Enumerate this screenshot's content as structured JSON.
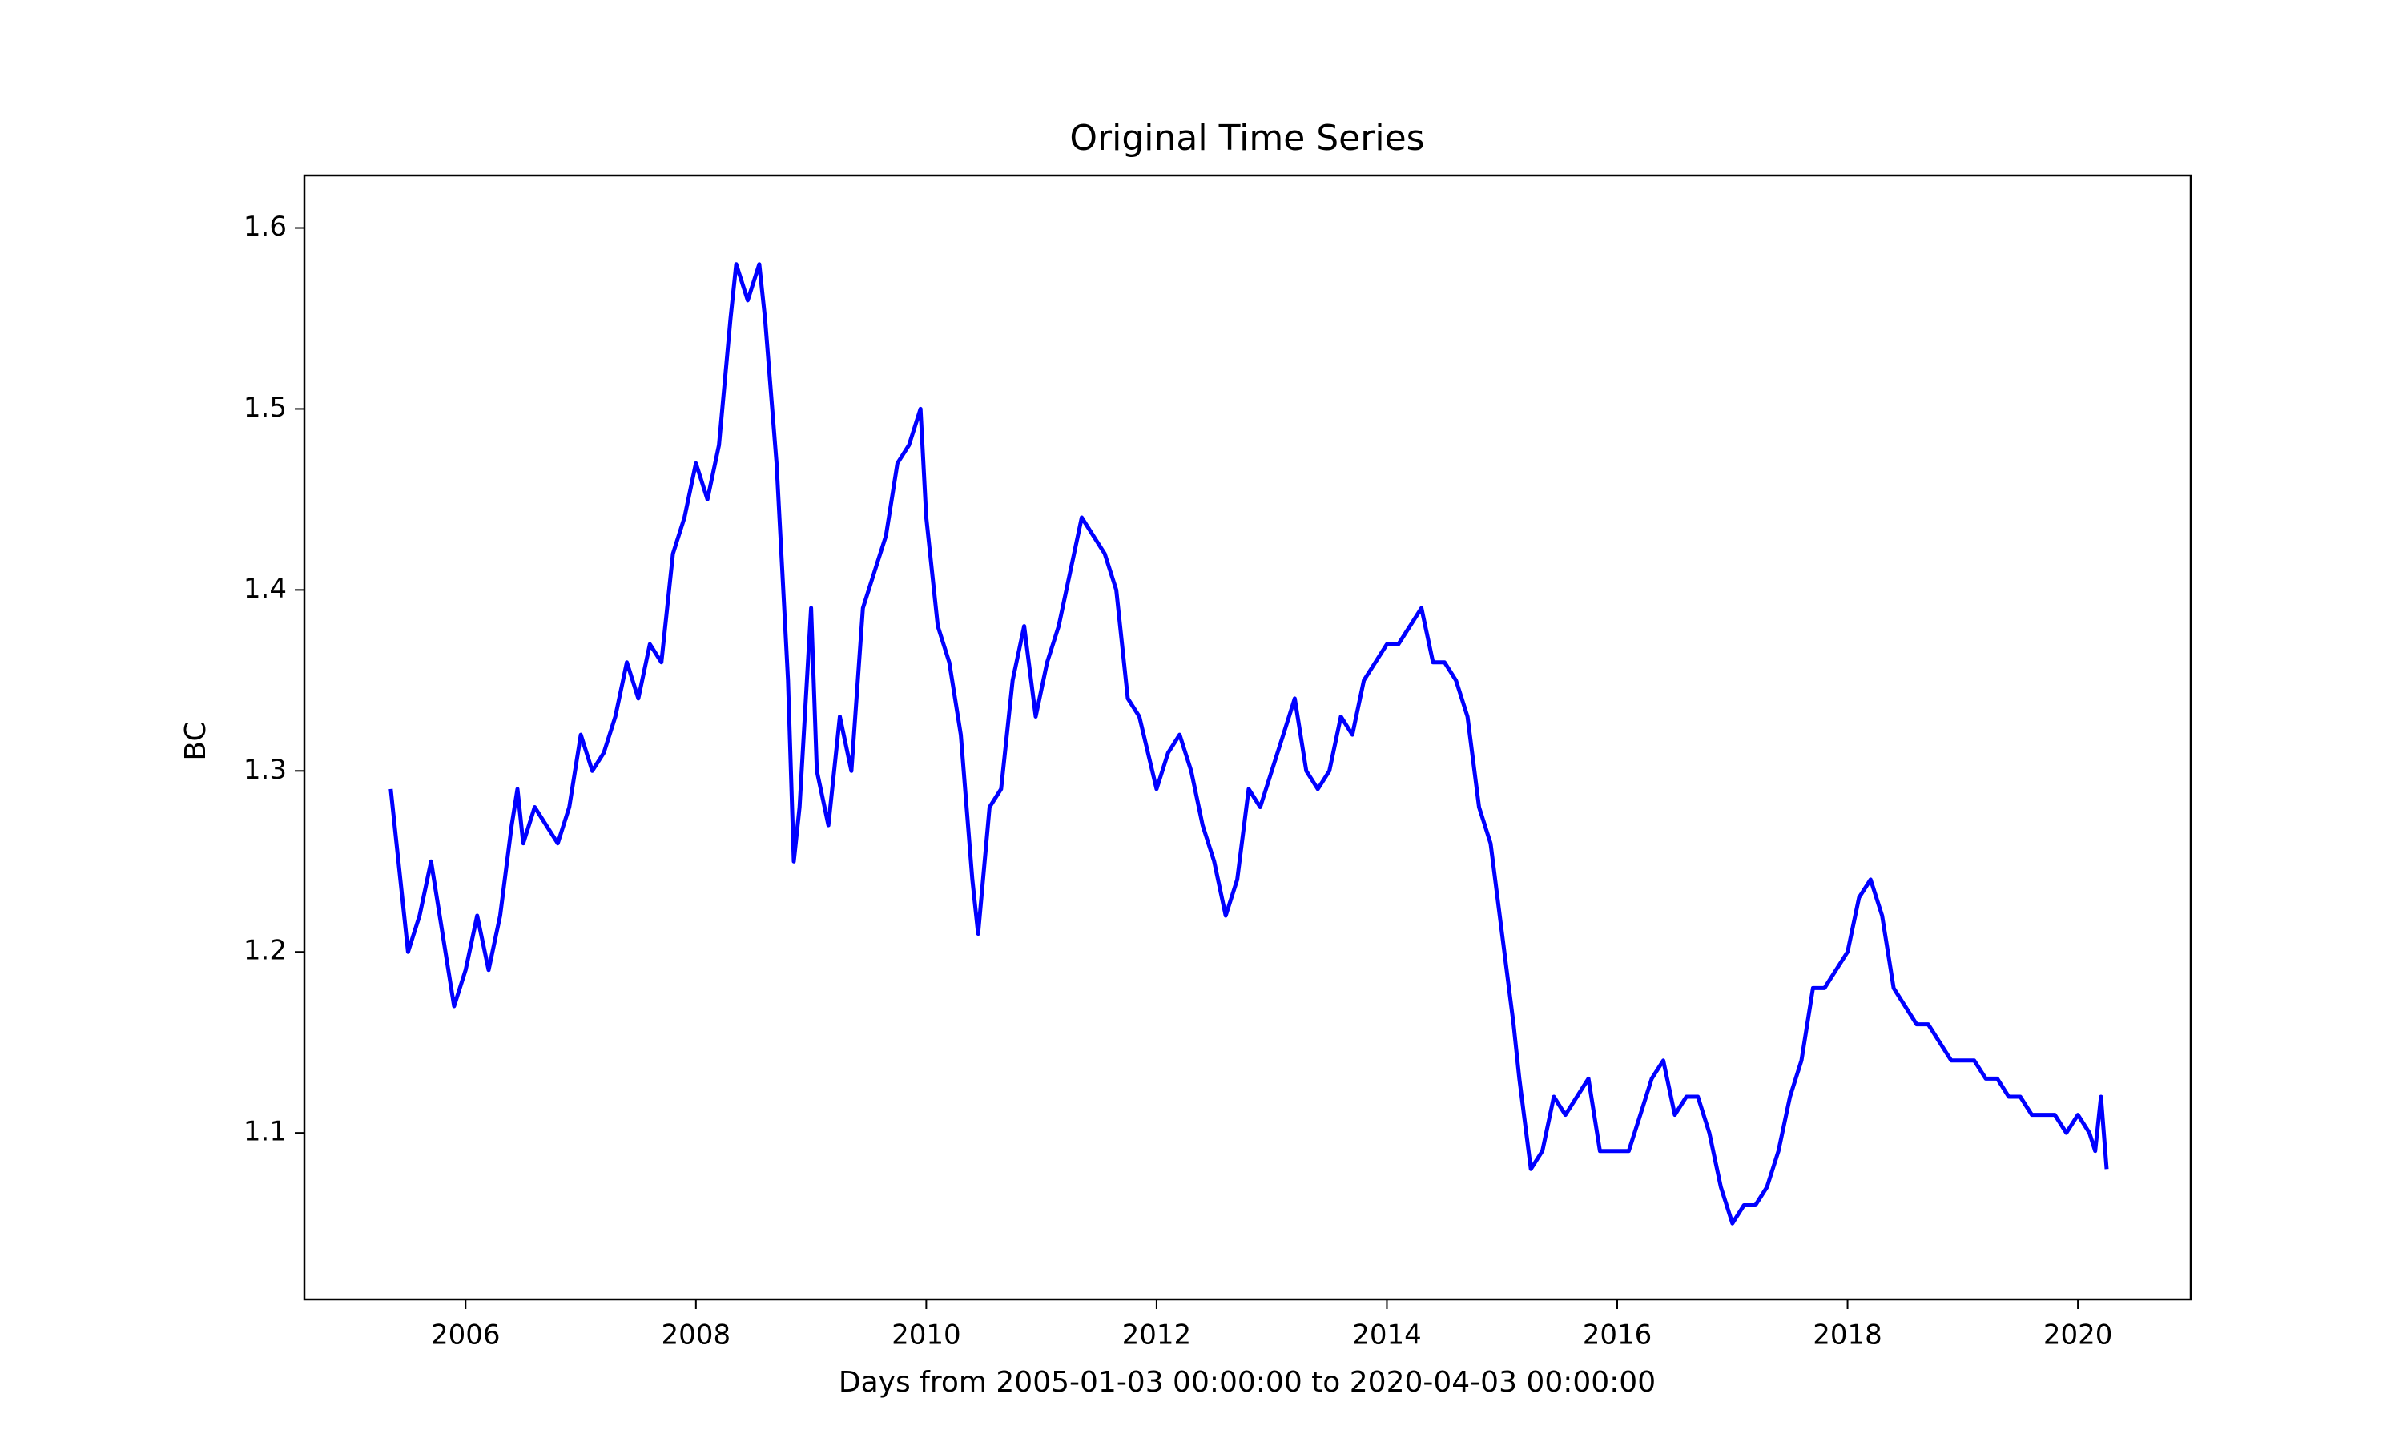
{
  "chart_data": {
    "type": "line",
    "title": "Original Time Series",
    "x_label": "Days from 2005-01-03 00:00:00 to 2020-04-03 00:00:00",
    "y_label": "BC",
    "x": [
      2005.35,
      2005.4,
      2005.45,
      2005.5,
      2005.6,
      2005.7,
      2005.8,
      2005.9,
      2006.0,
      2006.1,
      2006.2,
      2006.3,
      2006.4,
      2006.45,
      2006.5,
      2006.6,
      2006.7,
      2006.8,
      2006.9,
      2007.0,
      2007.1,
      2007.2,
      2007.3,
      2007.4,
      2007.5,
      2007.6,
      2007.7,
      2007.8,
      2007.9,
      2008.0,
      2008.1,
      2008.2,
      2008.3,
      2008.35,
      2008.45,
      2008.55,
      2008.6,
      2008.7,
      2008.75,
      2008.8,
      2008.85,
      2008.9,
      2009.0,
      2009.05,
      2009.15,
      2009.25,
      2009.35,
      2009.45,
      2009.55,
      2009.65,
      2009.75,
      2009.85,
      2009.95,
      2010.0,
      2010.1,
      2010.2,
      2010.3,
      2010.4,
      2010.45,
      2010.55,
      2010.65,
      2010.75,
      2010.85,
      2010.95,
      2011.05,
      2011.15,
      2011.25,
      2011.35,
      2011.45,
      2011.55,
      2011.65,
      2011.75,
      2011.85,
      2012.0,
      2012.1,
      2012.2,
      2012.3,
      2012.4,
      2012.5,
      2012.6,
      2012.7,
      2012.8,
      2012.9,
      2013.0,
      2013.1,
      2013.2,
      2013.3,
      2013.4,
      2013.5,
      2013.6,
      2013.7,
      2013.8,
      2013.9,
      2014.0,
      2014.1,
      2014.2,
      2014.3,
      2014.4,
      2014.5,
      2014.6,
      2014.7,
      2014.8,
      2014.9,
      2015.0,
      2015.1,
      2015.15,
      2015.25,
      2015.35,
      2015.45,
      2015.55,
      2015.65,
      2015.75,
      2015.85,
      2016.0,
      2016.1,
      2016.2,
      2016.3,
      2016.4,
      2016.5,
      2016.6,
      2016.7,
      2016.8,
      2016.9,
      2017.0,
      2017.1,
      2017.2,
      2017.3,
      2017.4,
      2017.5,
      2017.6,
      2017.7,
      2017.8,
      2017.9,
      2018.0,
      2018.1,
      2018.2,
      2018.3,
      2018.4,
      2018.5,
      2018.6,
      2018.7,
      2018.8,
      2018.9,
      2019.0,
      2019.1,
      2019.2,
      2019.3,
      2019.4,
      2019.5,
      2019.6,
      2019.7,
      2019.8,
      2019.9,
      2020.0,
      2020.1,
      2020.15,
      2020.2,
      2020.25
    ],
    "series": [
      {
        "name": "BC",
        "color": "#0000ff",
        "values": [
          1.29,
          1.26,
          1.23,
          1.2,
          1.22,
          1.25,
          1.21,
          1.17,
          1.19,
          1.22,
          1.19,
          1.22,
          1.27,
          1.29,
          1.26,
          1.28,
          1.27,
          1.26,
          1.28,
          1.32,
          1.3,
          1.31,
          1.33,
          1.36,
          1.34,
          1.37,
          1.36,
          1.42,
          1.44,
          1.47,
          1.45,
          1.48,
          1.55,
          1.58,
          1.56,
          1.58,
          1.55,
          1.47,
          1.41,
          1.35,
          1.25,
          1.28,
          1.39,
          1.3,
          1.27,
          1.33,
          1.3,
          1.39,
          1.41,
          1.43,
          1.47,
          1.48,
          1.5,
          1.44,
          1.38,
          1.36,
          1.32,
          1.24,
          1.21,
          1.28,
          1.29,
          1.35,
          1.38,
          1.33,
          1.36,
          1.38,
          1.41,
          1.44,
          1.43,
          1.42,
          1.4,
          1.34,
          1.33,
          1.29,
          1.31,
          1.32,
          1.3,
          1.27,
          1.25,
          1.22,
          1.24,
          1.29,
          1.28,
          1.3,
          1.32,
          1.34,
          1.3,
          1.29,
          1.3,
          1.33,
          1.32,
          1.35,
          1.36,
          1.37,
          1.37,
          1.38,
          1.39,
          1.36,
          1.36,
          1.35,
          1.33,
          1.28,
          1.26,
          1.21,
          1.16,
          1.13,
          1.08,
          1.09,
          1.12,
          1.11,
          1.12,
          1.13,
          1.09,
          1.09,
          1.09,
          1.11,
          1.13,
          1.14,
          1.11,
          1.12,
          1.12,
          1.1,
          1.07,
          1.05,
          1.06,
          1.06,
          1.07,
          1.09,
          1.12,
          1.14,
          1.18,
          1.18,
          1.19,
          1.2,
          1.23,
          1.24,
          1.22,
          1.18,
          1.17,
          1.16,
          1.16,
          1.15,
          1.14,
          1.14,
          1.14,
          1.13,
          1.13,
          1.12,
          1.12,
          1.11,
          1.11,
          1.11,
          1.1,
          1.11,
          1.1,
          1.09,
          1.12,
          1.08
        ]
      }
    ],
    "xlim": [
      2004.6,
      2020.98
    ],
    "ylim": [
      1.008,
      1.629
    ],
    "xticks": [
      2006,
      2008,
      2010,
      2012,
      2014,
      2016,
      2018,
      2020
    ],
    "yticks": [
      1.1,
      1.2,
      1.3,
      1.4,
      1.5,
      1.6
    ],
    "grid": false
  }
}
